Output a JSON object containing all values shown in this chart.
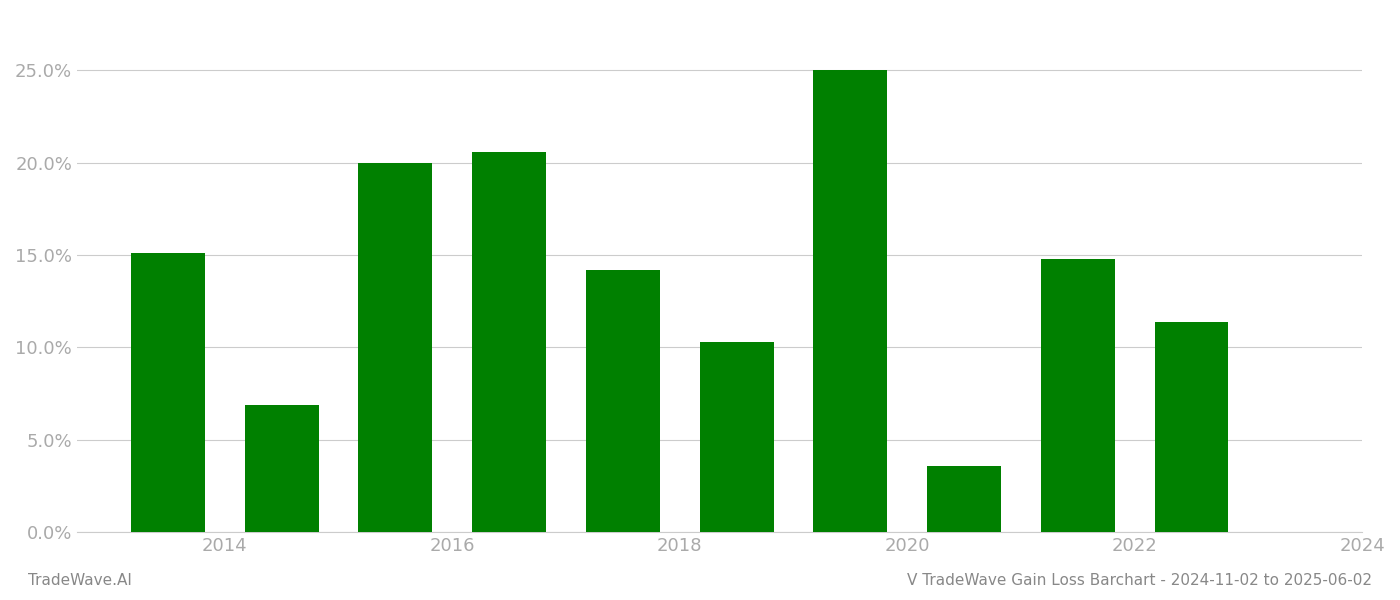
{
  "years": [
    2014,
    2015,
    2016,
    2017,
    2018,
    2019,
    2020,
    2021,
    2022,
    2023
  ],
  "values": [
    0.151,
    0.069,
    0.2,
    0.206,
    0.142,
    0.103,
    0.25,
    0.036,
    0.148,
    0.114
  ],
  "bar_color": "#008000",
  "title": "V TradeWave Gain Loss Barchart - 2024-11-02 to 2025-06-02",
  "watermark": "TradeWave.AI",
  "ylim": [
    0,
    0.28
  ],
  "yticks": [
    0.0,
    0.05,
    0.1,
    0.15,
    0.2,
    0.25
  ],
  "background_color": "#ffffff",
  "grid_color": "#cccccc",
  "tick_label_color": "#aaaaaa",
  "title_color": "#888888",
  "watermark_color": "#888888",
  "bar_width": 0.65,
  "xtick_positions": [
    2014.5,
    2016.5,
    2018.5,
    2020.5,
    2022.5,
    2024.5
  ],
  "xtick_labels": [
    "2014",
    "2016",
    "2018",
    "2020",
    "2022",
    "2024"
  ]
}
